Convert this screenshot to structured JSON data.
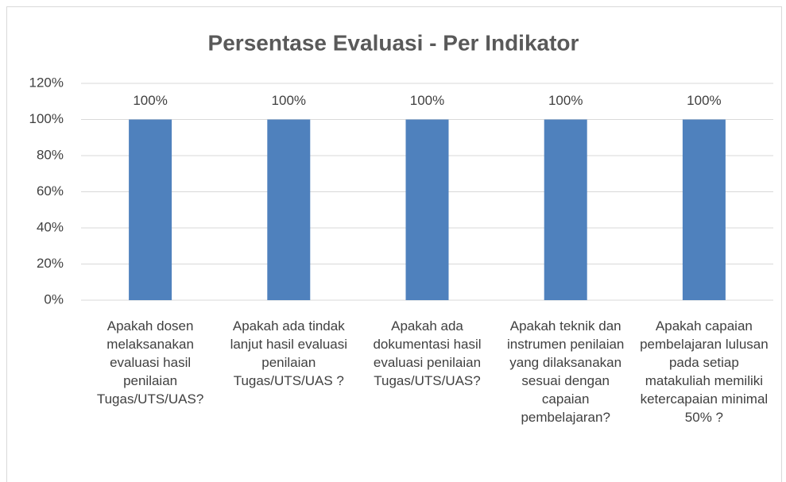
{
  "chart_data": {
    "type": "bar",
    "title": "Persentase Evaluasi - Per Indikator",
    "categories": [
      "Apakah dosen melaksanakan evaluasi hasil penilaian Tugas/UTS/UAS?",
      "Apakah ada tindak lanjut hasil evaluasi penilaian Tugas/UTS/UAS ?",
      "Apakah ada dokumentasi hasil evaluasi penilaian Tugas/UTS/UAS?",
      "Apakah teknik dan instrumen penilaian yang dilaksanakan sesuai dengan capaian pembelajaran?",
      "Apakah capaian pembelajaran lulusan pada setiap matakuliah memiliki ketercapaian minimal 50% ?"
    ],
    "values": [
      100,
      100,
      100,
      100,
      100
    ],
    "value_labels": [
      "100%",
      "100%",
      "100%",
      "100%",
      "100%"
    ],
    "color": "#4f81bd",
    "ylim": [
      0,
      120
    ],
    "yticks": [
      {
        "value": 0,
        "label": "0%"
      },
      {
        "value": 20,
        "label": "20%"
      },
      {
        "value": 40,
        "label": "40%"
      },
      {
        "value": 60,
        "label": "60%"
      },
      {
        "value": 80,
        "label": "80%"
      },
      {
        "value": 100,
        "label": "100%"
      },
      {
        "value": 120,
        "label": "120%"
      }
    ],
    "grid": true
  }
}
